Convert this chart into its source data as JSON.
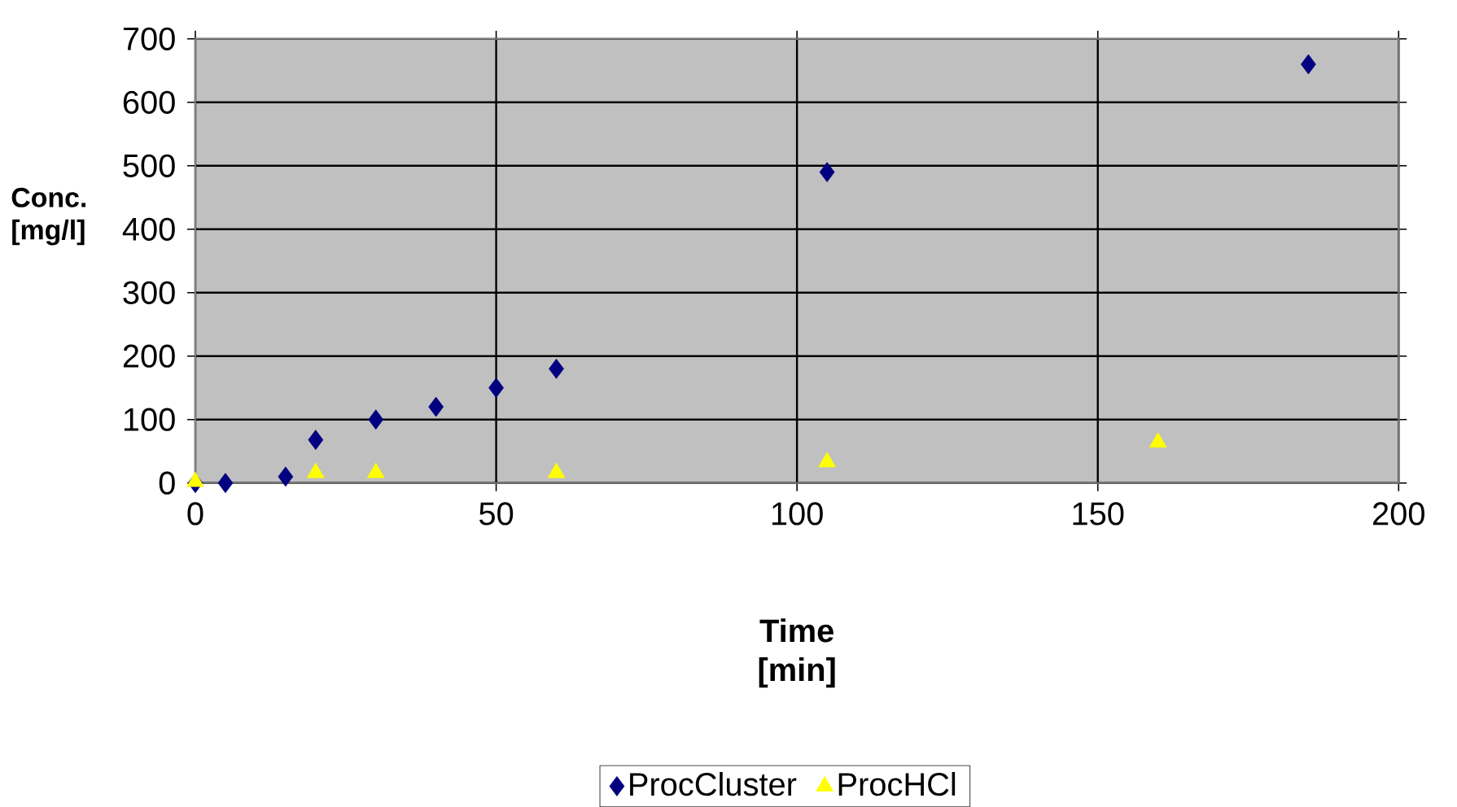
{
  "chart_data": {
    "type": "scatter",
    "xlabel": "Time [min]",
    "ylabel": "Conc. [mg/l]",
    "xlim": [
      0,
      200
    ],
    "xticks": [
      0,
      50,
      100,
      150,
      200
    ],
    "ylim": [
      0,
      700
    ],
    "yticks": [
      0,
      100,
      200,
      300,
      400,
      500,
      600,
      700
    ],
    "grid": true,
    "legend": "bottom",
    "series": [
      {
        "name": "ProcCluster",
        "color": "#000080",
        "marker": "diamond",
        "x": [
          0,
          5,
          15,
          20,
          30,
          40,
          50,
          60,
          105,
          185
        ],
        "values": [
          0,
          0,
          10,
          68,
          100,
          120,
          150,
          180,
          490,
          660
        ]
      },
      {
        "name": "ProcHCl",
        "color": "#ffff00",
        "marker": "triangle",
        "x": [
          0,
          20,
          30,
          60,
          105,
          160
        ],
        "values": [
          2,
          16,
          16,
          16,
          33,
          64
        ]
      }
    ]
  }
}
